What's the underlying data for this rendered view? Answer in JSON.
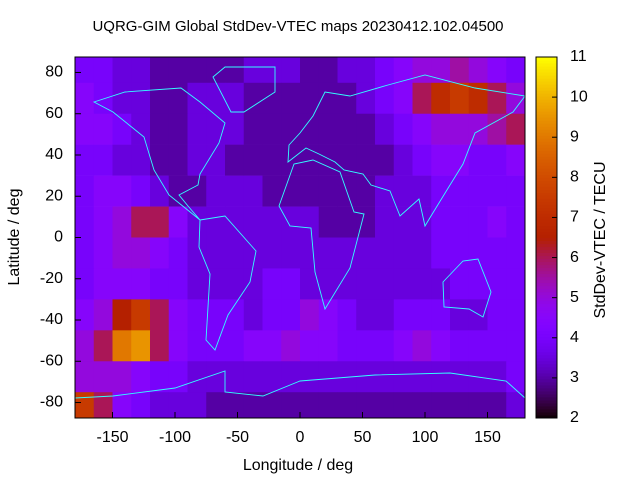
{
  "chart_data": {
    "type": "heatmap",
    "title": "UQRG-GIM Global StdDev-VTEC maps 20230412.102.04500",
    "x_label": "Longitude / deg",
    "y_label": "Latitude / deg",
    "colorbar_label": "StdDev-VTEC / TECU",
    "x": [
      -172.5,
      -157.5,
      -142.5,
      -127.5,
      -112.5,
      -97.5,
      -82.5,
      -67.5,
      -52.5,
      -37.5,
      -22.5,
      -7.5,
      7.5,
      22.5,
      37.5,
      52.5,
      67.5,
      82.5,
      97.5,
      112.5,
      127.5,
      142.5,
      157.5,
      172.5
    ],
    "y": [
      82.5,
      67.5,
      52.5,
      37.5,
      22.5,
      7.5,
      -7.5,
      -22.5,
      -37.5,
      -52.5,
      -67.5,
      -82.5
    ],
    "values": [
      [
        4,
        4,
        3.5,
        3.5,
        3,
        3,
        3,
        3,
        3,
        3.5,
        3.5,
        3.5,
        3,
        3,
        3.5,
        3.5,
        4,
        4.5,
        5,
        5,
        5.5,
        5,
        4.5,
        4
      ],
      [
        4.5,
        4,
        3.5,
        3.5,
        3,
        3,
        3.5,
        3.5,
        3.5,
        3,
        3,
        3,
        3,
        3,
        3,
        3.5,
        4,
        4.5,
        6,
        7,
        7.5,
        7,
        6,
        5
      ],
      [
        4.5,
        4.5,
        4,
        3.5,
        3,
        3,
        3.5,
        3.5,
        3.5,
        3,
        3,
        3,
        3,
        3,
        3,
        3,
        3.5,
        4,
        4.5,
        5,
        5,
        5,
        5.5,
        6
      ],
      [
        4,
        4,
        3.5,
        3.5,
        3,
        3,
        3.5,
        3.5,
        3,
        3,
        3,
        3,
        3,
        3,
        3,
        3,
        3,
        3.5,
        4,
        4.5,
        4.5,
        4,
        4,
        4.5
      ],
      [
        4,
        4.5,
        4.5,
        4,
        3.5,
        3,
        3,
        3.5,
        3.5,
        3.5,
        3,
        3,
        3,
        3,
        3,
        3,
        3.5,
        3.5,
        3.5,
        4,
        4,
        4,
        4,
        4
      ],
      [
        4,
        4.5,
        5,
        6,
        6,
        4.5,
        3.5,
        3.5,
        3.5,
        3.5,
        3.5,
        3.5,
        3.5,
        3,
        3,
        3,
        3.5,
        3.5,
        3.5,
        4,
        4,
        4,
        4.5,
        4
      ],
      [
        4,
        4.5,
        5,
        5,
        4.5,
        4,
        3.5,
        3.5,
        3.5,
        3.5,
        3.5,
        3.5,
        3.5,
        3.5,
        3.5,
        3.5,
        3.5,
        3.5,
        3.5,
        4,
        4,
        4,
        4,
        4
      ],
      [
        4,
        4.5,
        4.5,
        4.5,
        4,
        4,
        3.5,
        3.5,
        3.5,
        3.5,
        4,
        4,
        3.5,
        3.5,
        3.5,
        3.5,
        3.5,
        3.5,
        3.5,
        3.5,
        4,
        4,
        4,
        4
      ],
      [
        4.5,
        5,
        6.5,
        7.5,
        6,
        4.5,
        4,
        4,
        4,
        3.5,
        4,
        4,
        5,
        4.5,
        4,
        3.5,
        3.5,
        4,
        4,
        4,
        3.5,
        3.5,
        4,
        4
      ],
      [
        5,
        6,
        9,
        9.5,
        6,
        4.5,
        4,
        4,
        4,
        4.5,
        4.5,
        5,
        4.5,
        4.5,
        4,
        4,
        4,
        4.5,
        5,
        4.5,
        4,
        4,
        4,
        4
      ],
      [
        5,
        5,
        5,
        4.5,
        4,
        4,
        3.5,
        3.5,
        3.5,
        3.5,
        3.5,
        3.5,
        3.5,
        3.5,
        3.5,
        3.5,
        3.5,
        3.5,
        3.5,
        3.5,
        3.5,
        3.5,
        3.5,
        4
      ],
      [
        7.5,
        6,
        4.5,
        4,
        3.5,
        3.5,
        3.5,
        3,
        3,
        3,
        3,
        3,
        3,
        3,
        3,
        3,
        3,
        3,
        3,
        3,
        3,
        3,
        3,
        3.5
      ]
    ],
    "xlim": [
      -180,
      180
    ],
    "ylim": [
      -87.5,
      87.5
    ],
    "cblim": [
      2,
      11
    ],
    "xticks": [
      -150,
      -100,
      -50,
      0,
      50,
      100,
      150
    ],
    "yticks": [
      -80,
      -60,
      -40,
      -20,
      0,
      20,
      40,
      60,
      80
    ],
    "cbticks": [
      2,
      3,
      4,
      5,
      6,
      7,
      8,
      9,
      10,
      11
    ]
  }
}
